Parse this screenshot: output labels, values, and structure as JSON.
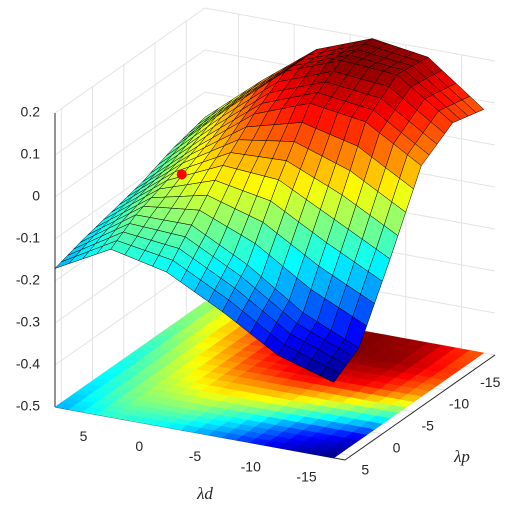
{
  "chart_data": {
    "type": "surface",
    "xlabel": "λd",
    "ylabel": "λp",
    "xlim": [
      -18,
      8
    ],
    "ylim": [
      -18,
      6
    ],
    "zlim": [
      -0.5,
      0.2
    ],
    "xticks": [
      5,
      0,
      -5,
      -10,
      -15
    ],
    "yticks": [
      -15,
      -10,
      -5,
      0,
      5
    ],
    "zticks": [
      0.2,
      0.1,
      0,
      -0.1,
      -0.2,
      -0.3,
      -0.4,
      -0.5
    ],
    "colormap": "jet",
    "grid": true,
    "contour_floor": true,
    "x": [
      8,
      3,
      -2,
      -7,
      -12,
      -17
    ],
    "y": [
      -18,
      -13,
      -8,
      -3,
      2,
      6
    ],
    "z": [
      [
        -0.06,
        0.05,
        0.15,
        0.2,
        0.18,
        0.08
      ],
      [
        -0.08,
        0.04,
        0.15,
        0.2,
        0.19,
        0.1
      ],
      [
        -0.11,
        0.0,
        0.1,
        0.15,
        0.13,
        0.05
      ],
      [
        -0.13,
        -0.03,
        0.03,
        0.02,
        -0.05,
        -0.12
      ],
      [
        -0.15,
        -0.06,
        -0.06,
        -0.13,
        -0.22,
        -0.28
      ],
      [
        -0.17,
        -0.1,
        -0.13,
        -0.2,
        -0.28,
        -0.32
      ]
    ],
    "marker": {
      "x": 0,
      "y": 0,
      "z": 0.03,
      "color": "#ff0000"
    }
  }
}
